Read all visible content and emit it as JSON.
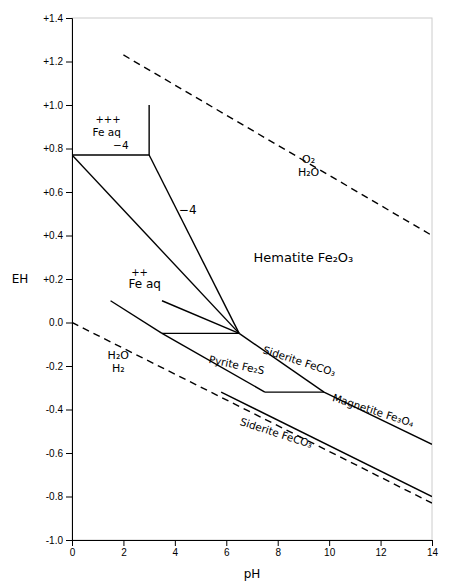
{
  "chart_data": {
    "type": "line",
    "xlabel": "pH",
    "ylabel": "EH",
    "xlim": [
      0,
      14
    ],
    "ylim": [
      -1.0,
      1.4
    ],
    "xticks": [
      0,
      2,
      4,
      6,
      8,
      10,
      12,
      14
    ],
    "yticks": [
      {
        "value": -1.0,
        "label": "-1.0"
      },
      {
        "value": -0.8,
        "label": "-0.8"
      },
      {
        "value": -0.6,
        "label": "-0.6"
      },
      {
        "value": -0.4,
        "label": "-0.4"
      },
      {
        "value": -0.2,
        "label": "-0.2"
      },
      {
        "value": 0.0,
        "label": "0.0"
      },
      {
        "value": 0.2,
        "label": "+0.2"
      },
      {
        "value": 0.4,
        "label": "+0.4"
      },
      {
        "value": 0.6,
        "label": "+0.6"
      },
      {
        "value": 0.8,
        "label": "+0.8"
      },
      {
        "value": 1.0,
        "label": "+1.0"
      },
      {
        "value": 1.2,
        "label": "+1.2"
      },
      {
        "value": 1.4,
        "label": "+1.4"
      }
    ],
    "color": "#000000",
    "series": [
      {
        "x": [
          2.0,
          14
        ],
        "values": [
          1.23,
          0.4
        ],
        "line_style": "dashed"
      },
      {
        "x": [
          0,
          14
        ],
        "values": [
          0.0,
          -0.83
        ],
        "line_style": "dashed"
      },
      {
        "x": [
          0,
          3.0
        ],
        "values": [
          0.77,
          0.77
        ],
        "line_style": "solid"
      },
      {
        "x": [
          3.0,
          3.0
        ],
        "values": [
          0.77,
          1.0
        ],
        "line_style": "solid"
      },
      {
        "x": [
          0.0,
          6.5
        ],
        "values": [
          0.77,
          -0.05
        ],
        "line_style": "solid"
      },
      {
        "x": [
          3.0,
          6.5
        ],
        "values": [
          0.77,
          -0.05
        ],
        "line_style": "solid"
      },
      {
        "x": [
          1.5,
          3.5
        ],
        "values": [
          0.1,
          -0.05
        ],
        "line_style": "solid"
      },
      {
        "x": [
          3.5,
          6.5
        ],
        "values": [
          0.1,
          -0.05
        ],
        "line_style": "solid"
      },
      {
        "x": [
          3.5,
          6.5
        ],
        "values": [
          -0.05,
          -0.05
        ],
        "line_style": "solid"
      },
      {
        "x": [
          6.5,
          9.8
        ],
        "values": [
          -0.05,
          -0.32
        ],
        "line_style": "solid"
      },
      {
        "x": [
          3.5,
          7.5
        ],
        "values": [
          -0.05,
          -0.32
        ],
        "line_style": "solid"
      },
      {
        "x": [
          7.5,
          9.8
        ],
        "values": [
          -0.32,
          -0.32
        ],
        "line_style": "solid"
      },
      {
        "x": [
          9.8,
          14.0
        ],
        "values": [
          -0.32,
          -0.56
        ],
        "line_style": "solid"
      },
      {
        "x": [
          5.8,
          14.0
        ],
        "values": [
          -0.32,
          -0.8
        ],
        "line_style": "solid"
      }
    ],
    "annotations": [
      {
        "x": 9.2,
        "y": 0.72,
        "text": "O₂\nH₂O"
      },
      {
        "x": 1.8,
        "y": -0.18,
        "text": "H₂O\nH₂"
      },
      {
        "x": 1.4,
        "y": 0.935,
        "text": "+++"
      },
      {
        "x": 1.35,
        "y": 0.875,
        "text": "Fe aq"
      },
      {
        "x": 1.9,
        "y": 0.815,
        "text": "−4"
      },
      {
        "x": 4.5,
        "y": 0.5,
        "text": "−4"
      },
      {
        "x": 2.3,
        "y": 0.215,
        "text": "++"
      },
      {
        "x": 2.2,
        "y": 0.16,
        "text": "Fe aq"
      },
      {
        "x": 9.0,
        "y": 0.28,
        "text": "Hematite Fe₂O₃"
      },
      {
        "x": 5.3,
        "y": -0.185,
        "text": "Pyrite Fe₂S"
      },
      {
        "x": 7.4,
        "y": -0.14,
        "text": "Siderite FeCO₃"
      },
      {
        "x": 6.5,
        "y": -0.47,
        "text": "Siderite FeCO₃"
      },
      {
        "x": 10.1,
        "y": -0.36,
        "text": "Magnetite Fe₃O₄"
      }
    ]
  }
}
